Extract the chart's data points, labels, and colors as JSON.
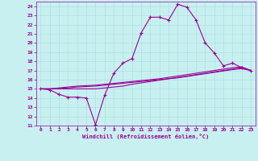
{
  "xlabel": "Windchill (Refroidissement éolien,°C)",
  "bg_color": "#c8f0f0",
  "line_color": "#990099",
  "grid_color": "#a8dede",
  "xmin": 0,
  "xmax": 23,
  "ymin": 11,
  "ymax": 24,
  "series": [
    [
      15.0,
      14.9,
      14.4,
      14.1,
      14.1,
      14.0,
      11.1,
      14.3,
      16.7,
      17.8,
      18.3,
      21.1,
      22.8,
      22.8,
      22.5,
      24.2,
      23.9,
      22.5,
      20.0,
      18.9,
      17.5,
      17.8,
      17.3,
      17.0
    ],
    [
      15.0,
      15.0,
      15.1,
      15.2,
      15.3,
      15.35,
      15.4,
      15.5,
      15.6,
      15.7,
      15.8,
      15.9,
      16.0,
      16.1,
      16.25,
      16.4,
      16.55,
      16.7,
      16.85,
      17.0,
      17.15,
      17.3,
      17.4,
      17.0
    ],
    [
      15.0,
      15.0,
      15.05,
      15.1,
      15.2,
      15.25,
      15.3,
      15.4,
      15.5,
      15.6,
      15.7,
      15.8,
      15.9,
      16.0,
      16.1,
      16.2,
      16.35,
      16.5,
      16.65,
      16.8,
      16.95,
      17.1,
      17.2,
      17.0
    ],
    [
      15.0,
      15.0,
      15.0,
      15.0,
      15.0,
      15.0,
      15.0,
      15.1,
      15.2,
      15.3,
      15.5,
      15.65,
      15.8,
      15.95,
      16.1,
      16.25,
      16.4,
      16.55,
      16.7,
      16.85,
      17.0,
      17.15,
      17.3,
      17.0
    ]
  ]
}
